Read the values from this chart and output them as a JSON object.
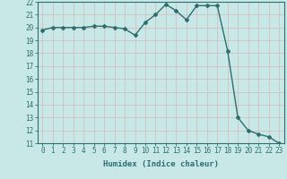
{
  "x": [
    0,
    1,
    2,
    3,
    4,
    5,
    6,
    7,
    8,
    9,
    10,
    11,
    12,
    13,
    14,
    15,
    16,
    17,
    18,
    19,
    20,
    21,
    22,
    23
  ],
  "y": [
    19.8,
    20.0,
    20.0,
    20.0,
    20.0,
    20.1,
    20.1,
    20.0,
    19.9,
    19.4,
    20.4,
    21.0,
    21.8,
    21.3,
    20.6,
    21.7,
    21.7,
    21.7,
    18.2,
    13.0,
    12.0,
    11.7,
    11.5,
    11.0
  ],
  "line_color": "#2d6e6e",
  "marker": "D",
  "marker_size": 2,
  "xlabel": "Humidex (Indice chaleur)",
  "ylim": [
    11,
    22
  ],
  "xlim": [
    -0.5,
    23.5
  ],
  "yticks": [
    11,
    12,
    13,
    14,
    15,
    16,
    17,
    18,
    19,
    20,
    21,
    22
  ],
  "xticks": [
    0,
    1,
    2,
    3,
    4,
    5,
    6,
    7,
    8,
    9,
    10,
    11,
    12,
    13,
    14,
    15,
    16,
    17,
    18,
    19,
    20,
    21,
    22,
    23
  ],
  "bg_color": "#c8e8e8",
  "grid_color_major": "#e8c8c8",
  "grid_color_minor": "#ffffff",
  "label_fontsize": 6.5,
  "tick_fontsize": 5.5,
  "linewidth": 1.0
}
